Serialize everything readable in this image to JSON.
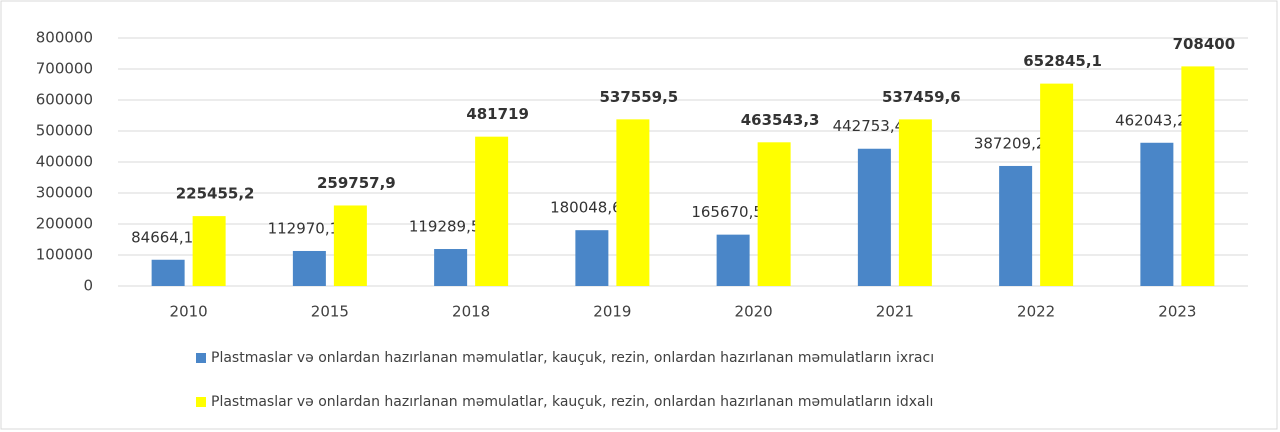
{
  "chart_data": {
    "type": "bar",
    "categories": [
      "2010",
      "2015",
      "2018",
      "2019",
      "2020",
      "2021",
      "2022",
      "2023"
    ],
    "series": [
      {
        "name": "Plastmaslar və onlardan hazırlanan məmulatlar, kauçuk, rezin, onlardan hazırlanan məmulatların ixracı",
        "color": "#4a86c8",
        "values": [
          84664.1,
          112970.1,
          119289.5,
          180048.6,
          165670.5,
          442753.4,
          387209.2,
          462043.2
        ],
        "value_labels": [
          "84664,1",
          "112970,1",
          "119289,5",
          "180048,6",
          "165670,5",
          "442753,4",
          "387209,2",
          "462043,2"
        ]
      },
      {
        "name": "Plastmaslar və onlardan hazırlanan məmulatlar, kauçuk, rezin, onlardan hazırlanan məmulatların idxalı",
        "color": "#ffff00",
        "values": [
          225455.2,
          259757.9,
          481719,
          537559.5,
          463543.3,
          537459.6,
          652845.1,
          708400
        ],
        "value_labels": [
          "225455,2",
          "259757,9",
          "481719",
          "537559,5",
          "463543,3",
          "537459,6",
          "652845,1",
          "708400"
        ]
      }
    ],
    "ylim": [
      0,
      800000
    ],
    "yticks": [
      0,
      100000,
      200000,
      300000,
      400000,
      500000,
      600000,
      700000,
      800000
    ],
    "grid": true,
    "legend": "bottom"
  }
}
